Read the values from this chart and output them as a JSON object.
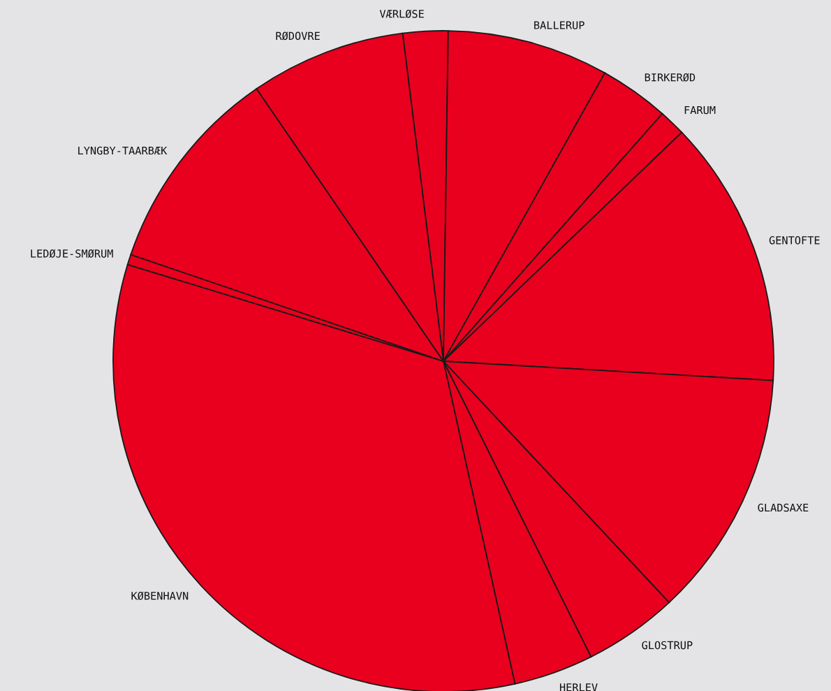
{
  "chart_data": {
    "type": "pie",
    "categories": [
      "VÆRLØSE",
      "BALLERUP",
      "BIRKERØD",
      "FARUM",
      "GENTOFTE",
      "GLADSAXE",
      "GLOSTRUP",
      "HERLEV",
      "KØBENHAVN",
      "LEDØJE-SMØRUM",
      "LYNGBY-TAARBÆK",
      "RØDOVRE"
    ],
    "values": [
      2.2,
      7.9,
      3.4,
      1.3,
      13.1,
      12.1,
      4.6,
      3.9,
      33.2,
      0.5,
      10.2,
      7.6
    ],
    "colors": [
      "#e8001e",
      "#e8001e",
      "#e8001e",
      "#e8001e",
      "#e8001e",
      "#e8001e",
      "#e8001e",
      "#e8001e",
      "#e8001e",
      "#e8001e",
      "#e8001e",
      "#e8001e"
    ],
    "legend": false
  }
}
